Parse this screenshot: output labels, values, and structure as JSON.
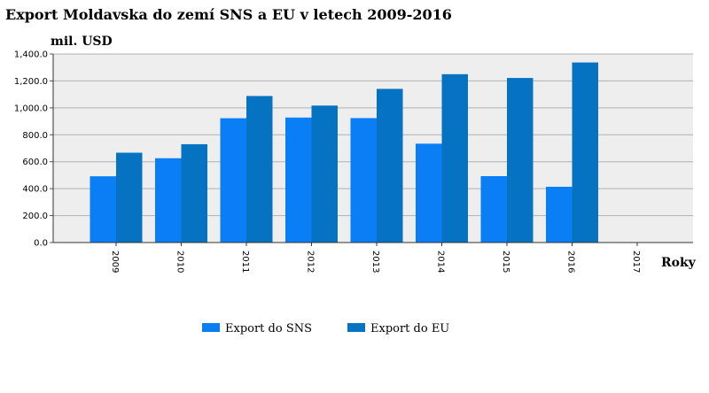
{
  "chart_data": {
    "type": "bar",
    "title": "Export Moldavska do zemí SNS a EU v letech 2009-2016",
    "ylabel": "mil. USD",
    "xlabel": "Roky",
    "categories": [
      "2009",
      "2010",
      "2011",
      "2012",
      "2013",
      "2014",
      "2015",
      "2016",
      "2017"
    ],
    "series": [
      {
        "name": "Export do SNS",
        "color": "#0a7ff5",
        "values": [
          492,
          626,
          923,
          928,
          924,
          734,
          493,
          414,
          null
        ]
      },
      {
        "name": "Export do EU",
        "color": "#0573c2",
        "values": [
          667,
          730,
          1088,
          1017,
          1141,
          1250,
          1222,
          1337,
          null
        ]
      }
    ],
    "ylim": [
      0,
      1400
    ],
    "yticks": [
      "0.0",
      "200.0",
      "400.0",
      "600.0",
      "800.0",
      "1,000.0",
      "1,200.0",
      "1,400.0"
    ],
    "ytick_values": [
      0,
      200,
      400,
      600,
      800,
      1000,
      1200,
      1400
    ],
    "grid": true,
    "legend": "bottom-center",
    "plot_background": "#eeeeee",
    "grid_color": "#b0b0b0"
  }
}
